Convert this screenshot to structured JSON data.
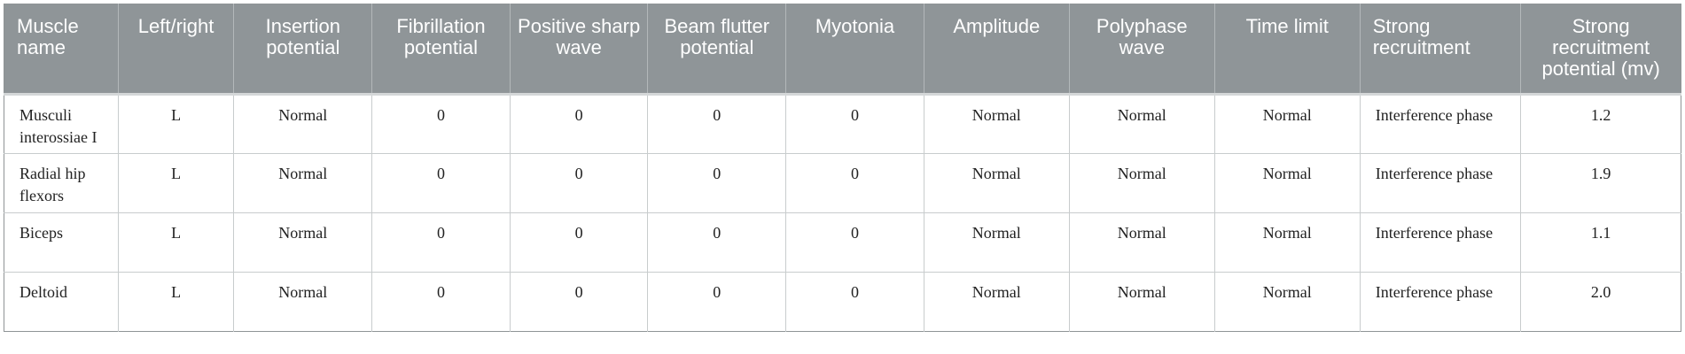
{
  "table": {
    "columns": [
      {
        "label": "Muscle name",
        "align": "left"
      },
      {
        "label": "Left/right",
        "align": "center"
      },
      {
        "label": "Insertion potential",
        "align": "center"
      },
      {
        "label": "Fibrillation potential",
        "align": "center"
      },
      {
        "label": "Positive sharp wave",
        "align": "center"
      },
      {
        "label": "Beam flutter potential",
        "align": "center"
      },
      {
        "label": "Myotonia",
        "align": "center"
      },
      {
        "label": "Amplitude",
        "align": "center"
      },
      {
        "label": "Polyphase wave",
        "align": "center"
      },
      {
        "label": "Time limit",
        "align": "center"
      },
      {
        "label": "Strong recruitment",
        "align": "left"
      },
      {
        "label": "Strong recruitment potential (mv)",
        "align": "center"
      }
    ],
    "rows": [
      [
        "Musculi interossiae I",
        "L",
        "Normal",
        "0",
        "0",
        "0",
        "0",
        "Normal",
        "Normal",
        "Normal",
        "Interference phase",
        "1.2"
      ],
      [
        "Radial hip flexors",
        "L",
        "Normal",
        "0",
        "0",
        "0",
        "0",
        "Normal",
        "Normal",
        "Normal",
        "Interference phase",
        "1.9"
      ],
      [
        "Biceps",
        "L",
        "Normal",
        "0",
        "0",
        "0",
        "0",
        "Normal",
        "Normal",
        "Normal",
        "Interference phase",
        "1.1"
      ],
      [
        "Deltoid",
        "L",
        "Normal",
        "0",
        "0",
        "0",
        "0",
        "Normal",
        "Normal",
        "Normal",
        "Interference phase",
        "2.0"
      ]
    ]
  },
  "colors": {
    "header_background": "#8f9598",
    "header_text": "#ffffff",
    "body_text": "#222222",
    "border": "#c8cccd"
  }
}
